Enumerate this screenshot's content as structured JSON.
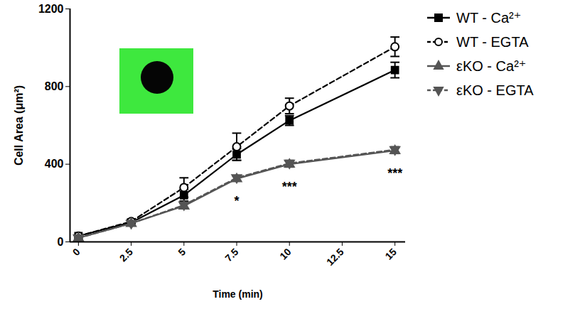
{
  "chart_data": {
    "type": "line",
    "x_label": "Time (min)",
    "y_label": "Cell Area (μm²)",
    "x": [
      0,
      2.5,
      5,
      7.5,
      10,
      15
    ],
    "xlim": [
      -0.4,
      15.5
    ],
    "xticks": [
      0,
      2.5,
      5,
      7.5,
      10,
      12.5,
      15
    ],
    "ylim": [
      0,
      1200
    ],
    "yticks": [
      0,
      400,
      800,
      1200
    ],
    "legend": "top-right",
    "series": [
      {
        "name": "WT - Ca²⁺",
        "color": "#000000",
        "marker": "square",
        "line_style": "solid",
        "values": [
          30,
          100,
          240,
          450,
          625,
          885
        ],
        "errors": [
          5,
          10,
          30,
          30,
          25,
          40
        ]
      },
      {
        "name": "WT - EGTA",
        "color": "#000000",
        "marker": "circle-open",
        "line_style": "dashed",
        "values": [
          30,
          105,
          280,
          490,
          700,
          1005
        ],
        "errors": [
          5,
          10,
          50,
          70,
          40,
          50
        ]
      },
      {
        "name": "εKO - Ca²⁺",
        "color": "#555555",
        "marker": "triangle-up",
        "line_style": "solid",
        "values": [
          20,
          95,
          185,
          325,
          400,
          470
        ],
        "errors": [
          5,
          8,
          12,
          12,
          15,
          15
        ]
      },
      {
        "name": "εKO - EGTA",
        "color": "#555555",
        "marker": "triangle-down",
        "line_style": "dashed",
        "values": [
          20,
          95,
          190,
          330,
          405,
          475
        ],
        "errors": [
          5,
          8,
          12,
          12,
          15,
          15
        ]
      }
    ],
    "annotations": [
      {
        "text": "*",
        "x": 7.5
      },
      {
        "text": "***",
        "x": 10
      },
      {
        "text": "***",
        "x": 15
      }
    ]
  }
}
